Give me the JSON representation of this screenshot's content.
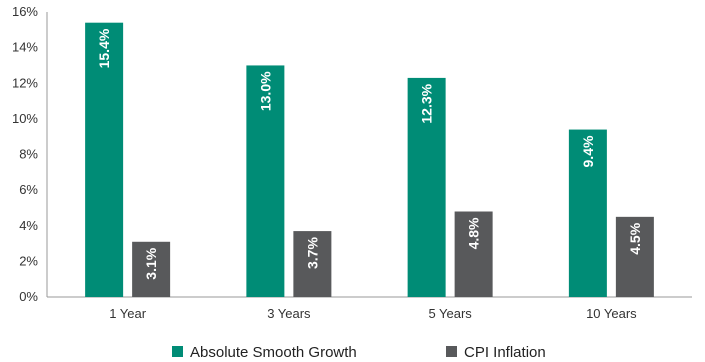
{
  "chart_data": {
    "type": "bar",
    "categories": [
      "1 Year",
      "3 Years",
      "5 Years",
      "10 Years"
    ],
    "series": [
      {
        "name": "Absolute Smooth Growth",
        "color": "#008C76",
        "values": [
          15.4,
          13.0,
          12.3,
          9.4
        ],
        "labels": [
          "15.4%",
          "13.0%",
          "12.3%",
          "9.4%"
        ]
      },
      {
        "name": "CPI Inflation",
        "color": "#58595B",
        "values": [
          3.1,
          3.7,
          4.8,
          4.5
        ],
        "labels": [
          "3.1%",
          "3.7%",
          "4.8%",
          "4.5%"
        ]
      }
    ],
    "y_ticks": [
      0,
      2,
      4,
      6,
      8,
      10,
      12,
      14,
      16
    ],
    "y_tick_labels": [
      "0%",
      "2%",
      "4%",
      "6%",
      "8%",
      "10%",
      "12%",
      "14%",
      "16%"
    ],
    "ylim": [
      0,
      16
    ],
    "title": "",
    "xlabel": "",
    "ylabel": "",
    "grid": false,
    "legend_position": "bottom-center"
  }
}
